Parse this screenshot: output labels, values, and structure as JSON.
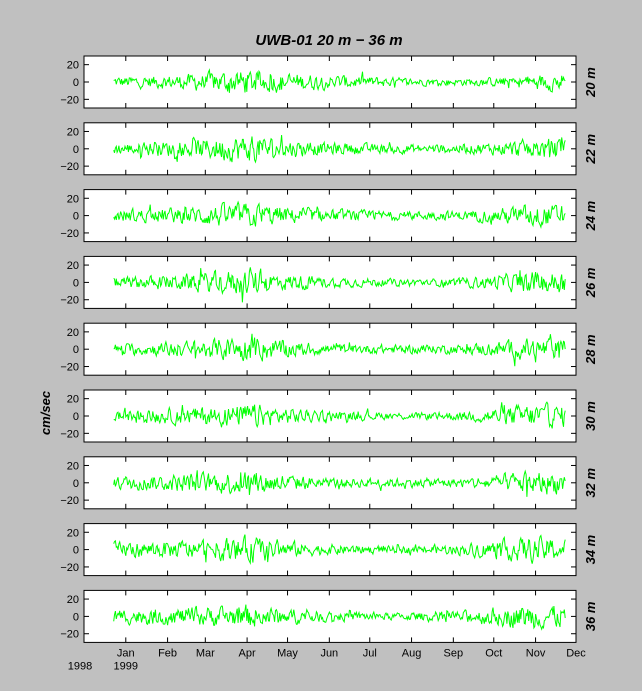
{
  "chart_data": {
    "type": "line",
    "title": "UWB-01   20 m − 36 m",
    "ylabel": "cm/sec",
    "ylim": [
      -30,
      30
    ],
    "yticks": [
      20,
      0,
      -20
    ],
    "ytick_labels": [
      "20",
      "0",
      "−20"
    ],
    "xlim": [
      "1998-12-01",
      "1999-12-01"
    ],
    "month_ticks": [
      {
        "date": "1999-01-01",
        "label": "Jan"
      },
      {
        "date": "1999-02-01",
        "label": "Feb"
      },
      {
        "date": "1999-03-01",
        "label": "Mar"
      },
      {
        "date": "1999-04-01",
        "label": "Apr"
      },
      {
        "date": "1999-05-01",
        "label": "May"
      },
      {
        "date": "1999-06-01",
        "label": "Jun"
      },
      {
        "date": "1999-07-01",
        "label": "Jul"
      },
      {
        "date": "1999-08-01",
        "label": "Aug"
      },
      {
        "date": "1999-09-01",
        "label": "Sep"
      },
      {
        "date": "1999-10-01",
        "label": "Oct"
      },
      {
        "date": "1999-11-01",
        "label": "Nov"
      },
      {
        "date": "1999-12-01",
        "label": "Dec"
      }
    ],
    "year_labels": [
      "1998",
      "1999"
    ],
    "line_color": "#00ff00",
    "grid": false,
    "series": [
      {
        "name": "20 m",
        "activity": [
          6,
          7,
          8,
          12,
          14,
          10,
          8,
          7,
          5,
          4,
          4,
          5,
          8,
          11
        ]
      },
      {
        "name": "22 m",
        "activity": [
          6,
          8,
          9,
          13,
          15,
          10,
          7,
          6,
          5,
          5,
          5,
          7,
          10,
          12
        ]
      },
      {
        "name": "24 m",
        "activity": [
          7,
          8,
          9,
          12,
          14,
          9,
          7,
          6,
          5,
          5,
          5,
          8,
          12,
          12
        ]
      },
      {
        "name": "26 m",
        "activity": [
          6,
          7,
          9,
          12,
          15,
          9,
          6,
          5,
          4,
          4,
          5,
          8,
          12,
          12
        ]
      },
      {
        "name": "28 m",
        "activity": [
          6,
          7,
          9,
          11,
          14,
          9,
          6,
          5,
          5,
          5,
          5,
          8,
          12,
          11
        ]
      },
      {
        "name": "30 m",
        "activity": [
          6,
          8,
          9,
          11,
          13,
          9,
          6,
          5,
          4,
          4,
          5,
          9,
          13,
          12
        ]
      },
      {
        "name": "32 m",
        "activity": [
          7,
          8,
          10,
          12,
          14,
          9,
          6,
          5,
          5,
          5,
          5,
          9,
          13,
          12
        ]
      },
      {
        "name": "34 m",
        "activity": [
          8,
          9,
          10,
          12,
          14,
          9,
          6,
          5,
          4,
          5,
          6,
          10,
          14,
          12
        ]
      },
      {
        "name": "36 m",
        "activity": [
          8,
          9,
          10,
          11,
          13,
          9,
          6,
          5,
          4,
          5,
          6,
          10,
          14,
          12
        ]
      }
    ]
  }
}
